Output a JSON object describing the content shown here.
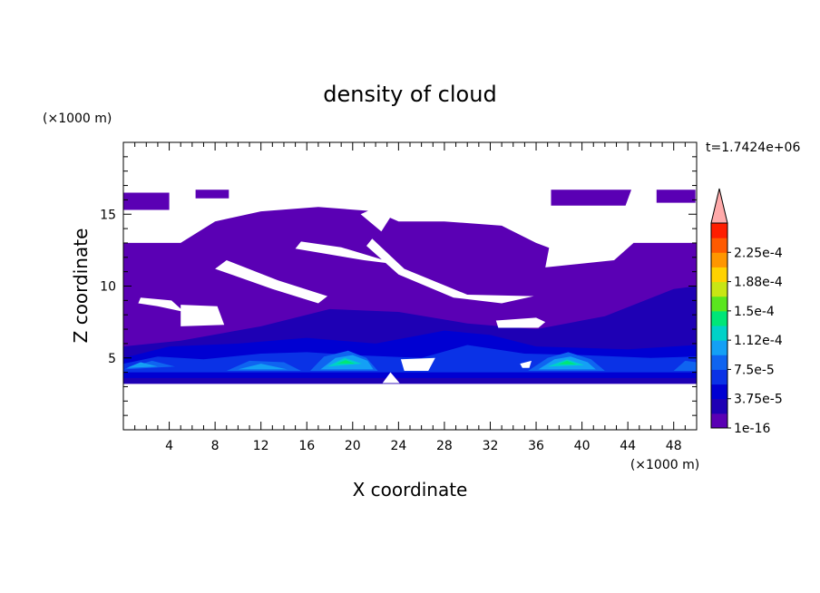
{
  "chart_data": {
    "type": "heatmap",
    "title": "density of cloud",
    "xlabel": "X coordinate",
    "ylabel": "Z coordinate",
    "x_unit": "(×1000 m)",
    "y_unit": "(×1000 m)",
    "time_label": "t=1.7424e+06",
    "xlim": [
      0,
      50
    ],
    "ylim": [
      0,
      20
    ],
    "xticks": [
      4,
      8,
      12,
      16,
      20,
      24,
      28,
      32,
      36,
      40,
      44,
      48
    ],
    "yticks": [
      5,
      10,
      15
    ],
    "colorbar": {
      "levels": [
        1e-16,
        1.875e-05,
        3.75e-05,
        5.625e-05,
        7.5e-05,
        9.375e-05,
        0.0001125,
        0.00013125,
        0.00015,
        0.00016875,
        0.0001875,
        0.00020625,
        0.000225,
        0.00024375
      ],
      "labels": [
        "1e-16",
        "3.75e-5",
        "7.5e-5",
        "1.12e-4",
        "1.5e-4",
        "1.88e-4",
        "2.25e-4"
      ],
      "colors": [
        "#5a00b4",
        "#1e00b4",
        "#0000d2",
        "#0a32e6",
        "#0f64f0",
        "#14a0f5",
        "#00d2c8",
        "#00e678",
        "#5ae61e",
        "#c8e614",
        "#ffd200",
        "#ff9600",
        "#ff5a00",
        "#ff1e00"
      ],
      "extend_color": "#ffaaaa"
    },
    "regions": [
      {
        "level": 0,
        "poly": [
          [
            0,
            3.2
          ],
          [
            50,
            3.2
          ],
          [
            50,
            13
          ],
          [
            44,
            13
          ],
          [
            40,
            11.8
          ],
          [
            36,
            13
          ],
          [
            33,
            14.2
          ],
          [
            28,
            14.5
          ],
          [
            24,
            14.5
          ],
          [
            22,
            15.2
          ],
          [
            17,
            15.5
          ],
          [
            12,
            15.2
          ],
          [
            8,
            14.5
          ],
          [
            5,
            13
          ],
          [
            0,
            13
          ]
        ]
      },
      {
        "level": 0,
        "poly": [
          [
            0,
            15.3
          ],
          [
            4,
            15.3
          ],
          [
            4,
            16.5
          ],
          [
            0,
            16.5
          ]
        ]
      },
      {
        "level": 0,
        "poly": [
          [
            6.3,
            16.1
          ],
          [
            9.2,
            16.1
          ],
          [
            9.2,
            16.7
          ],
          [
            6.3,
            16.7
          ]
        ]
      },
      {
        "level": 0,
        "poly": [
          [
            37.3,
            15.6
          ],
          [
            43.8,
            15.6
          ],
          [
            44.3,
            16.7
          ],
          [
            37.3,
            16.7
          ]
        ]
      },
      {
        "level": 0,
        "poly": [
          [
            46.5,
            15.8
          ],
          [
            49.9,
            15.8
          ],
          [
            49.9,
            16.7
          ],
          [
            46.5,
            16.7
          ]
        ]
      },
      {
        "level": 1,
        "poly": [
          [
            0,
            5.8
          ],
          [
            5,
            6.2
          ],
          [
            12,
            7.2
          ],
          [
            18,
            8.4
          ],
          [
            24,
            8.2
          ],
          [
            30,
            7.4
          ],
          [
            36,
            7.0
          ],
          [
            42,
            7.9
          ],
          [
            48,
            9.8
          ],
          [
            50,
            10
          ],
          [
            50,
            3.2
          ],
          [
            0,
            3.2
          ]
        ]
      },
      {
        "level": 2,
        "poly": [
          [
            0,
            5.0
          ],
          [
            4,
            5.8
          ],
          [
            10,
            6.0
          ],
          [
            16,
            6.4
          ],
          [
            22,
            6.0
          ],
          [
            28,
            6.9
          ],
          [
            32,
            6.6
          ],
          [
            36,
            5.8
          ],
          [
            44,
            5.6
          ],
          [
            50,
            5.9
          ],
          [
            50,
            3.6
          ],
          [
            0,
            3.6
          ]
        ]
      },
      {
        "level": 3,
        "poly": [
          [
            0,
            4.6
          ],
          [
            3,
            5.1
          ],
          [
            7,
            4.9
          ],
          [
            12,
            5.3
          ],
          [
            16,
            5.4
          ],
          [
            20,
            5.2
          ],
          [
            26,
            5.0
          ],
          [
            30,
            5.9
          ],
          [
            35,
            5.3
          ],
          [
            40,
            5.2
          ],
          [
            46,
            5.0
          ],
          [
            50,
            5.1
          ],
          [
            50,
            4.0
          ],
          [
            0,
            4.0
          ]
        ]
      },
      {
        "level": 4,
        "poly": [
          [
            0,
            4.2
          ],
          [
            2.5,
            4.8
          ],
          [
            4.5,
            4.4
          ],
          [
            0,
            4.2
          ]
        ]
      },
      {
        "level": 4,
        "poly": [
          [
            9,
            4.1
          ],
          [
            11,
            4.8
          ],
          [
            14,
            4.7
          ],
          [
            15.5,
            4.1
          ]
        ]
      },
      {
        "level": 4,
        "poly": [
          [
            16.3,
            4.1
          ],
          [
            17.5,
            5.1
          ],
          [
            19.6,
            5.5
          ],
          [
            21.2,
            5.0
          ],
          [
            22.2,
            4.1
          ]
        ]
      },
      {
        "level": 4,
        "poly": [
          [
            35.3,
            4.1
          ],
          [
            37,
            5.0
          ],
          [
            38.8,
            5.4
          ],
          [
            40.8,
            4.9
          ],
          [
            42,
            4.1
          ]
        ]
      },
      {
        "level": 4,
        "poly": [
          [
            48,
            4.1
          ],
          [
            49,
            4.8
          ],
          [
            50,
            4.7
          ],
          [
            50,
            4.1
          ]
        ]
      },
      {
        "level": 5,
        "poly": [
          [
            0.3,
            4.3
          ],
          [
            1.5,
            4.7
          ],
          [
            3,
            4.4
          ]
        ]
      },
      {
        "level": 5,
        "poly": [
          [
            10,
            4.2
          ],
          [
            12,
            4.6
          ],
          [
            14.3,
            4.2
          ]
        ]
      },
      {
        "level": 5,
        "poly": [
          [
            17.2,
            4.2
          ],
          [
            18.5,
            5.0
          ],
          [
            20,
            5.2
          ],
          [
            21.3,
            4.8
          ],
          [
            21.8,
            4.2
          ]
        ]
      },
      {
        "level": 5,
        "poly": [
          [
            36.2,
            4.2
          ],
          [
            37.6,
            4.9
          ],
          [
            39,
            5.1
          ],
          [
            40.5,
            4.7
          ],
          [
            41.2,
            4.2
          ]
        ]
      },
      {
        "level": 6,
        "poly": [
          [
            17.8,
            4.4
          ],
          [
            19.3,
            5.0
          ],
          [
            20.8,
            4.6
          ]
        ]
      },
      {
        "level": 6,
        "poly": [
          [
            37,
            4.4
          ],
          [
            38.7,
            4.9
          ],
          [
            40.2,
            4.5
          ]
        ]
      },
      {
        "level": 7,
        "poly": [
          [
            18.6,
            4.6
          ],
          [
            19.4,
            4.85
          ],
          [
            20.2,
            4.6
          ]
        ]
      },
      {
        "level": 7,
        "poly": [
          [
            37.9,
            4.55
          ],
          [
            38.7,
            4.8
          ],
          [
            39.5,
            4.55
          ]
        ]
      }
    ],
    "gaps": [
      {
        "poly": [
          [
            8,
            11.2
          ],
          [
            13,
            9.8
          ],
          [
            17,
            8.8
          ],
          [
            17.8,
            9.3
          ],
          [
            13.5,
            10.4
          ],
          [
            9,
            11.8
          ]
        ]
      },
      {
        "poly": [
          [
            15,
            12.6
          ],
          [
            21,
            11.8
          ],
          [
            24,
            11.5
          ],
          [
            19,
            12.7
          ],
          [
            15.5,
            13.1
          ]
        ]
      },
      {
        "poly": [
          [
            21.7,
            13.3
          ],
          [
            24.5,
            11.2
          ],
          [
            30,
            9.4
          ],
          [
            35.8,
            9.3
          ],
          [
            33,
            8.8
          ],
          [
            28.8,
            9.2
          ],
          [
            24,
            10.8
          ],
          [
            21.2,
            12.8
          ]
        ]
      },
      {
        "poly": [
          [
            20.7,
            15.0
          ],
          [
            22.5,
            13.8
          ],
          [
            23.3,
            14.8
          ],
          [
            22.1,
            15.5
          ]
        ]
      },
      {
        "poly": [
          [
            1.5,
            9.2
          ],
          [
            4.2,
            9.0
          ],
          [
            5.3,
            8.2
          ],
          [
            3,
            8.6
          ],
          [
            1.3,
            8.8
          ]
        ]
      },
      {
        "poly": [
          [
            5,
            8.7
          ],
          [
            8.2,
            8.6
          ],
          [
            8.8,
            7.3
          ],
          [
            5,
            7.2
          ]
        ]
      },
      {
        "poly": [
          [
            32.5,
            7.6
          ],
          [
            36,
            7.8
          ],
          [
            36.8,
            7.5
          ],
          [
            36.2,
            7.1
          ],
          [
            32.7,
            7.1
          ]
        ]
      },
      {
        "poly": [
          [
            24.2,
            4.9
          ],
          [
            27.2,
            5.0
          ],
          [
            26.6,
            4.1
          ],
          [
            24.5,
            4.1
          ]
        ]
      },
      {
        "poly": [
          [
            36.8,
            11.3
          ],
          [
            42.8,
            11.8
          ],
          [
            44.5,
            13.0
          ],
          [
            40,
            14.6
          ],
          [
            37.5,
            14.2
          ]
        ]
      },
      {
        "poly": [
          [
            22.6,
            3.25
          ],
          [
            23.3,
            4.0
          ],
          [
            24.1,
            3.25
          ]
        ]
      },
      {
        "poly": [
          [
            34.6,
            4.6
          ],
          [
            35.6,
            4.8
          ],
          [
            35.4,
            4.3
          ],
          [
            34.8,
            4.3
          ]
        ]
      }
    ]
  }
}
